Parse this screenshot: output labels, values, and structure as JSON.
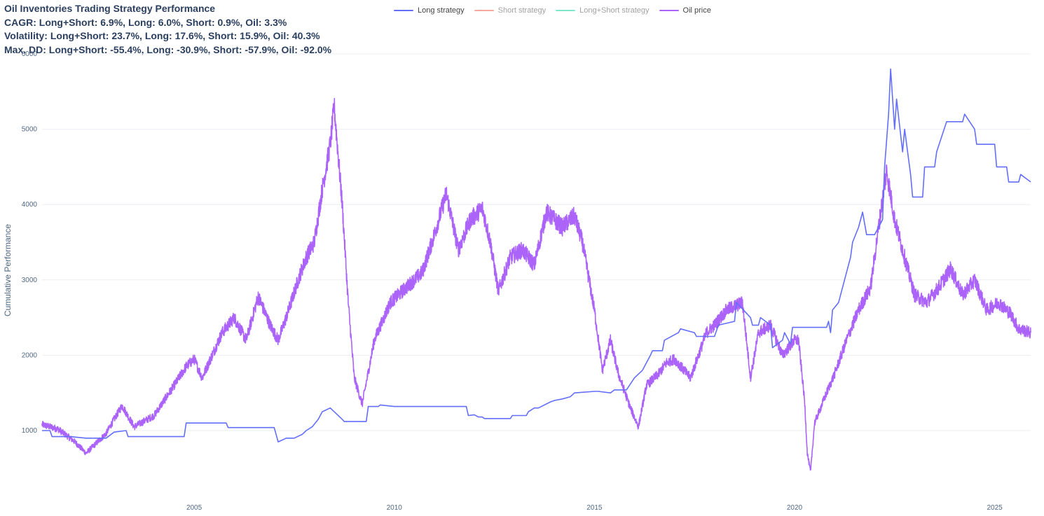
{
  "chart_data": {
    "type": "line",
    "title_lines": [
      "Oil Inventories Trading Strategy Performance",
      "CAGR: Long+Short: 6.9%, Long: 6.0%, Short: 0.9%, Oil: 3.3%",
      "Volatility: Long+Short: 23.7%, Long: 17.6%, Short: 15.9%, Oil: 40.3%",
      "Max. DD: Long+Short: -55.4%, Long: -30.9%, Short: -57.9%, Oil: -92.0%"
    ],
    "ylabel": "Cumulative Performance",
    "xlabel": "",
    "xlim": [
      2001.2,
      2025.9
    ],
    "ylim": [
      230,
      6000
    ],
    "yticks": [
      1000,
      2000,
      3000,
      4000,
      5000,
      6000
    ],
    "xticks": [
      2005,
      2010,
      2015,
      2020,
      2025
    ],
    "grid": true,
    "legend_position": "top-center",
    "legend": [
      {
        "name": "Long strategy",
        "color": "#636efa",
        "visible": true
      },
      {
        "name": "Short strategy",
        "color": "#ef553b",
        "visible": false
      },
      {
        "name": "Long+Short strategy",
        "color": "#00cc96",
        "visible": false
      },
      {
        "name": "Oil price",
        "color": "#ab63fa",
        "visible": true
      }
    ],
    "series": [
      {
        "name": "Oil price",
        "color": "#ab63fa",
        "noise": 55,
        "x": [
          2001.2,
          2001.6,
          2002.0,
          2002.3,
          2002.8,
          2003.0,
          2003.2,
          2003.5,
          2004.0,
          2004.5,
          2004.8,
          2005.0,
          2005.2,
          2005.7,
          2006.0,
          2006.3,
          2006.6,
          2006.9,
          2007.1,
          2007.3,
          2007.6,
          2007.8,
          2008.0,
          2008.2,
          2008.4,
          2008.5,
          2008.7,
          2008.85,
          2009.0,
          2009.2,
          2009.5,
          2009.9,
          2010.3,
          2010.7,
          2011.0,
          2011.3,
          2011.6,
          2011.9,
          2012.2,
          2012.4,
          2012.6,
          2012.9,
          2013.2,
          2013.5,
          2013.8,
          2014.2,
          2014.5,
          2014.7,
          2015.0,
          2015.2,
          2015.4,
          2015.6,
          2015.9,
          2016.1,
          2016.3,
          2016.6,
          2016.8,
          2017.0,
          2017.4,
          2017.8,
          2018.0,
          2018.3,
          2018.7,
          2018.9,
          2019.1,
          2019.4,
          2019.7,
          2020.0,
          2020.1,
          2020.25,
          2020.32,
          2020.4,
          2020.5,
          2020.8,
          2021.0,
          2021.3,
          2021.6,
          2021.9,
          2022.1,
          2022.3,
          2022.5,
          2022.8,
          2023.0,
          2023.3,
          2023.6,
          2023.9,
          2024.2,
          2024.5,
          2024.8,
          2025.1,
          2025.4,
          2025.6,
          2025.9
        ],
        "y": [
          1080,
          1020,
          860,
          700,
          960,
          1150,
          1330,
          1050,
          1200,
          1600,
          1850,
          1950,
          1700,
          2300,
          2500,
          2200,
          2780,
          2400,
          2200,
          2500,
          3000,
          3300,
          3500,
          4200,
          4800,
          5300,
          4000,
          2700,
          1700,
          1350,
          2200,
          2700,
          2900,
          3100,
          3600,
          4150,
          3400,
          3800,
          3950,
          3500,
          2850,
          3300,
          3400,
          3200,
          3900,
          3700,
          3850,
          3500,
          2600,
          1800,
          2200,
          1750,
          1300,
          1050,
          1600,
          1750,
          1900,
          1950,
          1700,
          2300,
          2400,
          2600,
          2700,
          1700,
          2300,
          2400,
          2000,
          2200,
          2200,
          1400,
          700,
          450,
          1100,
          1500,
          1750,
          2200,
          2600,
          2900,
          3700,
          4450,
          3800,
          3200,
          2800,
          2700,
          2900,
          3150,
          2800,
          3000,
          2600,
          2700,
          2550,
          2350,
          2300
        ]
      },
      {
        "name": "Long strategy",
        "color": "#636efa",
        "noise": 0,
        "x": [
          2001.2,
          2001.4,
          2001.45,
          2001.9,
          2002.3,
          2002.5,
          2002.8,
          2003.0,
          2003.3,
          2003.35,
          2004.5,
          2004.75,
          2004.8,
          2005.4,
          2005.8,
          2005.85,
          2006.9,
          2007.0,
          2007.1,
          2007.3,
          2007.5,
          2007.7,
          2007.8,
          2007.95,
          2008.1,
          2008.2,
          2008.4,
          2008.5,
          2008.7,
          2008.75,
          2009.3,
          2009.35,
          2009.6,
          2009.65,
          2010.0,
          2011.8,
          2011.85,
          2012.0,
          2012.1,
          2012.2,
          2012.25,
          2012.9,
          2012.95,
          2013.3,
          2013.35,
          2013.5,
          2013.6,
          2013.9,
          2014.0,
          2014.2,
          2014.4,
          2014.5,
          2015.0,
          2015.1,
          2015.4,
          2015.5,
          2015.8,
          2016.0,
          2016.2,
          2016.4,
          2016.45,
          2016.7,
          2016.75,
          2017.1,
          2017.15,
          2017.5,
          2017.55,
          2018.0,
          2018.1,
          2018.5,
          2018.55,
          2018.9,
          2018.95,
          2019.1,
          2019.15,
          2019.4,
          2019.45,
          2019.7,
          2019.75,
          2019.9,
          2019.95,
          2020.4,
          2020.5,
          2020.8,
          2020.85,
          2020.9,
          2020.95,
          2021.1,
          2021.2,
          2021.4,
          2021.45,
          2021.6,
          2021.7,
          2021.8,
          2022.0,
          2022.2,
          2022.25,
          2022.35,
          2022.4,
          2022.5,
          2022.55,
          2022.7,
          2022.75,
          2022.9,
          2022.95,
          2023.2,
          2023.25,
          2023.5,
          2023.55,
          2023.8,
          2023.85,
          2024.2,
          2024.25,
          2024.5,
          2024.55,
          2025.0,
          2025.05,
          2025.3,
          2025.35,
          2025.6,
          2025.65,
          2025.9
        ],
        "y": [
          1000,
          1000,
          920,
          920,
          900,
          900,
          900,
          980,
          1000,
          920,
          920,
          920,
          1100,
          1100,
          1100,
          1040,
          1040,
          1040,
          850,
          900,
          900,
          950,
          1000,
          1050,
          1150,
          1250,
          1300,
          1250,
          1150,
          1120,
          1120,
          1320,
          1320,
          1340,
          1320,
          1320,
          1200,
          1210,
          1180,
          1180,
          1160,
          1160,
          1200,
          1200,
          1250,
          1300,
          1300,
          1380,
          1400,
          1420,
          1450,
          1500,
          1520,
          1520,
          1500,
          1540,
          1540,
          1700,
          1800,
          2000,
          2060,
          2060,
          2200,
          2300,
          2350,
          2300,
          2250,
          2250,
          2400,
          2450,
          2700,
          2500,
          2400,
          2400,
          2500,
          2400,
          2100,
          2200,
          2300,
          2150,
          2370,
          2370,
          2370,
          2370,
          2450,
          2300,
          2600,
          2700,
          2900,
          3300,
          3500,
          3700,
          3900,
          3600,
          3600,
          3800,
          4500,
          5200,
          5800,
          5000,
          5400,
          4700,
          5000,
          4400,
          4100,
          4100,
          4500,
          4500,
          4700,
          5100,
          5100,
          5100,
          5200,
          5000,
          4800,
          4800,
          4500,
          4500,
          4300,
          4300,
          4400,
          4300
        ]
      }
    ]
  }
}
